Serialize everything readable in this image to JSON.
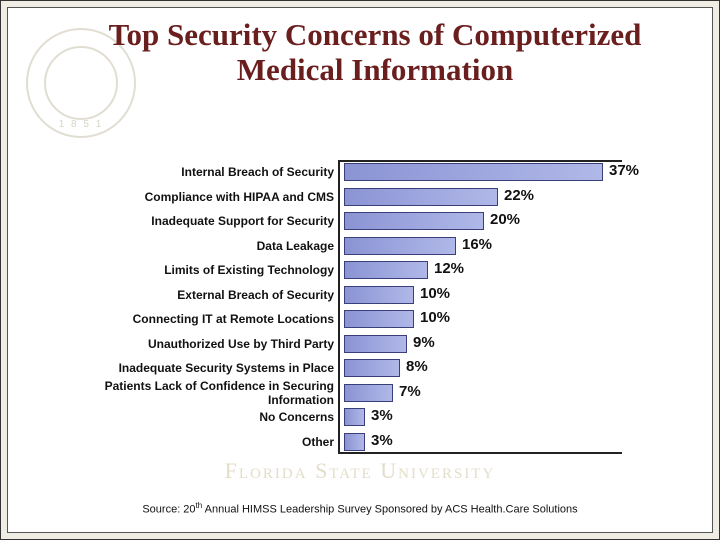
{
  "title": "Top Security Concerns of Computerized Medical Information",
  "seal_year": "1 8 5 1",
  "watermark_text": "Florida State University",
  "source_prefix": "Source: 20",
  "source_sup": "th",
  "source_suffix": " Annual HIMSS Leadership Survey Sponsored by ACS Health.Care Solutions",
  "chart": {
    "type": "bar-horizontal",
    "max_percent": 40,
    "bar_color": "#8b94d4",
    "bar_border": "#3a3f7a",
    "axis_color": "#222222",
    "background_color": "#ffffff",
    "title_color": "#6a1e1e",
    "title_fontsize": 31,
    "label_fontsize": 12,
    "value_fontsize": 15,
    "rows": [
      {
        "label": "Internal Breach of Security",
        "value": 37,
        "value_label": "37%"
      },
      {
        "label": "Compliance with HIPAA and CMS",
        "value": 22,
        "value_label": "22%"
      },
      {
        "label": "Inadequate Support for Security",
        "value": 20,
        "value_label": "20%"
      },
      {
        "label": "Data Leakage",
        "value": 16,
        "value_label": "16%"
      },
      {
        "label": "Limits of Existing Technology",
        "value": 12,
        "value_label": "12%"
      },
      {
        "label": "External Breach of Security",
        "value": 10,
        "value_label": "10%"
      },
      {
        "label": "Connecting IT at Remote Locations",
        "value": 10,
        "value_label": "10%"
      },
      {
        "label": "Unauthorized Use by Third Party",
        "value": 9,
        "value_label": "9%"
      },
      {
        "label": "Inadequate Security Systems in Place",
        "value": 8,
        "value_label": "8%"
      },
      {
        "label": "Patients Lack of Confidence in Securing Information",
        "value": 7,
        "value_label": "7%"
      },
      {
        "label": "No Concerns",
        "value": 3,
        "value_label": "3%"
      },
      {
        "label": "Other",
        "value": 3,
        "value_label": "3%"
      }
    ]
  }
}
